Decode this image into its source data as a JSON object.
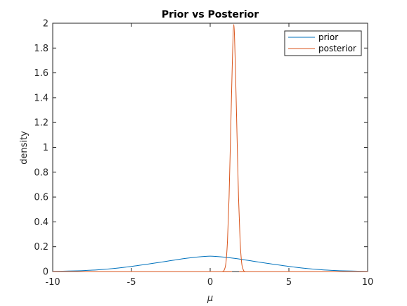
{
  "chart_data": {
    "type": "line",
    "title": "Prior vs Posterior",
    "xlabel": "μ",
    "ylabel": "density",
    "xlim": [
      -10,
      10
    ],
    "ylim": [
      0,
      2
    ],
    "xticks": [
      -10,
      -5,
      0,
      5,
      10
    ],
    "yticks": [
      0,
      0.2,
      0.4,
      0.6,
      0.8,
      1,
      1.2,
      1.4,
      1.6,
      1.8,
      2
    ],
    "grid": false,
    "legend_position": "top-right",
    "series": [
      {
        "name": "prior",
        "color": "#0072BD",
        "x": [
          -10,
          -9,
          -8,
          -7,
          -6,
          -5,
          -4,
          -3,
          -2,
          -1,
          0,
          1,
          2,
          3,
          4,
          5,
          6,
          7,
          8,
          9,
          10
        ],
        "y": [
          0.0018,
          0.004,
          0.0081,
          0.0151,
          0.026,
          0.041,
          0.059,
          0.078,
          0.098,
          0.114,
          0.124,
          0.114,
          0.098,
          0.078,
          0.059,
          0.041,
          0.026,
          0.0151,
          0.0081,
          0.004,
          0.0018
        ]
      },
      {
        "name": "posterior",
        "color": "#D95319",
        "x": [
          -10,
          0.5,
          0.8,
          0.9,
          1.0,
          1.1,
          1.2,
          1.3,
          1.4,
          1.5,
          1.6,
          1.7,
          1.8,
          1.9,
          2.0,
          2.1,
          2.2,
          2.5,
          10
        ],
        "y": [
          0,
          0,
          0.002,
          0.015,
          0.07,
          0.25,
          0.6,
          1.12,
          1.65,
          1.99,
          1.65,
          1.12,
          0.6,
          0.25,
          0.07,
          0.015,
          0.002,
          0,
          0
        ]
      }
    ]
  }
}
